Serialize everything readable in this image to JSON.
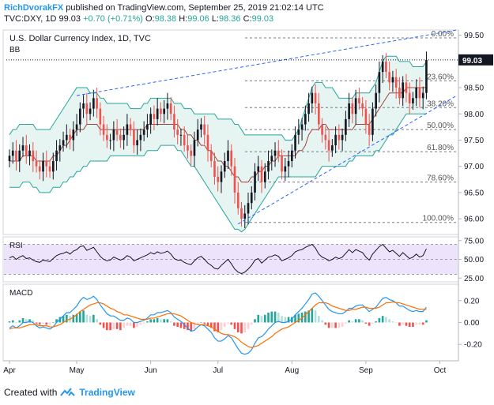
{
  "header": {
    "user": "RichDvorakFX",
    "published": "published on TradingView.com, September 25, 2019 21:02:14 UTC",
    "symbol": "TVC:DXY, 1D",
    "last": "99.03",
    "change": "+0.70 (+0.71%)",
    "ohlc": [
      {
        "label": "O:",
        "value": "98.38"
      },
      {
        "label": "H:",
        "value": "99.06"
      },
      {
        "label": "L:",
        "value": "98.36"
      },
      {
        "label": "C:",
        "value": "99.03"
      }
    ]
  },
  "footer": {
    "created": "Created with",
    "brand": "TradingView"
  },
  "colors": {
    "up": "#26a69a",
    "down": "#ef5350",
    "candle_up": "#131722",
    "bb": "#26a69a",
    "bb_fill": "#e6f4f2",
    "sma": "#a1453d",
    "trend": "#2962ff",
    "rsi": "#131722",
    "rsi_band": "#ede3fa",
    "macd": "#2196f3",
    "signal": "#ff6d00"
  },
  "chart_data": [
    {
      "type": "candlestick",
      "title": "U.S. Dollar Currency Index, 1D, TVC",
      "indicator_label": "BB",
      "price_label": "99.03",
      "ylim": [
        95.7,
        99.6
      ],
      "y_ticks": [
        "99.50",
        "99.00",
        "98.50",
        "98.00",
        "97.50",
        "97.00",
        "96.50",
        "96.00"
      ],
      "x_ticks": [
        "Apr",
        "May",
        "Jun",
        "Jul",
        "Aug",
        "Sep",
        "Oct"
      ],
      "fibonacci": [
        {
          "label": "0.00%",
          "value": 99.45
        },
        {
          "label": "23.60%",
          "value": 98.63
        },
        {
          "label": "38.20%",
          "value": 98.12
        },
        {
          "label": "50.00%",
          "value": 97.7
        },
        {
          "label": "61.80%",
          "value": 97.28
        },
        {
          "label": "78.60%",
          "value": 96.7
        },
        {
          "label": "100.00%",
          "value": 95.93
        }
      ],
      "close": [
        97.2,
        97.3,
        97.1,
        97.3,
        97.4,
        97.2,
        97.3,
        97.1,
        97.0,
        96.9,
        97.1,
        97.0,
        96.9,
        97.1,
        97.3,
        97.4,
        97.5,
        97.6,
        97.5,
        97.7,
        97.8,
        98.1,
        98.2,
        98.0,
        98.1,
        98.3,
        98.1,
        97.8,
        97.6,
        97.5,
        97.5,
        97.7,
        97.6,
        97.5,
        97.6,
        97.8,
        97.7,
        97.4,
        97.5,
        97.6,
        97.7,
        97.8,
        98.0,
        97.9,
        98.1,
        98.0,
        98.1,
        98.2,
        98.0,
        97.7,
        97.6,
        97.6,
        97.4,
        97.3,
        97.2,
        97.5,
        97.7,
        97.8,
        97.6,
        97.3,
        97.1,
        96.8,
        96.7,
        96.9,
        97.1,
        97.3,
        97.0,
        96.5,
        96.2,
        96.0,
        96.1,
        96.3,
        96.5,
        96.9,
        97.0,
        96.7,
        96.9,
        97.1,
        97.2,
        97.3,
        97.2,
        96.9,
        97.0,
        97.1,
        97.3,
        97.6,
        97.7,
        97.8,
        98.0,
        98.2,
        98.4,
        98.2,
        97.8,
        97.6,
        97.5,
        97.3,
        97.4,
        97.6,
        97.5,
        97.6,
        97.9,
        98.2,
        98.0,
        98.3,
        98.2,
        98.1,
        97.8,
        97.6,
        98.1,
        98.4,
        98.8,
        99.0,
        98.8,
        98.6,
        98.7,
        98.5,
        98.3,
        98.6,
        98.4,
        98.2,
        98.3,
        98.5,
        98.3,
        98.4,
        99.03
      ],
      "bb_upper": [
        97.6,
        97.7,
        97.7,
        97.8,
        97.8,
        97.8,
        97.8,
        97.8,
        97.7,
        97.7,
        97.7,
        97.7,
        97.7,
        97.8,
        97.9,
        98.0,
        98.1,
        98.2,
        98.3,
        98.4,
        98.5,
        98.5,
        98.5,
        98.5,
        98.4,
        98.4,
        98.4,
        98.3,
        98.3,
        98.2,
        98.2,
        98.2,
        98.2,
        98.2,
        98.2,
        98.2,
        98.1,
        98.1,
        98.1,
        98.1,
        98.2,
        98.2,
        98.3,
        98.3,
        98.3,
        98.3,
        98.3,
        98.3,
        98.3,
        98.2,
        98.2,
        98.2,
        98.1,
        98.1,
        98.1,
        98.0,
        98.0,
        98.0,
        98.0,
        98.0,
        98.0,
        98.0,
        97.9,
        97.9,
        97.9,
        97.9,
        97.9,
        97.8,
        97.8,
        97.7,
        97.6,
        97.6,
        97.6,
        97.6,
        97.6,
        97.6,
        97.6,
        97.6,
        97.6,
        97.6,
        97.6,
        97.6,
        97.5,
        97.5,
        97.5,
        97.6,
        97.7,
        97.9,
        98.1,
        98.3,
        98.5,
        98.6,
        98.6,
        98.6,
        98.5,
        98.5,
        98.5,
        98.4,
        98.3,
        98.3,
        98.3,
        98.3,
        98.3,
        98.4,
        98.4,
        98.4,
        98.4,
        98.4,
        98.5,
        98.6,
        98.8,
        99.0,
        99.1,
        99.1,
        99.1,
        99.1,
        99.0,
        99.0,
        99.0,
        99.0,
        98.9,
        98.9,
        98.9,
        98.9,
        99.0
      ],
      "bb_lower": [
        96.6,
        96.6,
        96.6,
        96.6,
        96.7,
        96.7,
        96.7,
        96.6,
        96.6,
        96.5,
        96.5,
        96.5,
        96.5,
        96.6,
        96.6,
        96.6,
        96.7,
        96.7,
        96.8,
        96.8,
        96.9,
        96.9,
        97.0,
        97.0,
        97.1,
        97.1,
        97.1,
        97.1,
        97.1,
        97.1,
        97.2,
        97.2,
        97.2,
        97.2,
        97.2,
        97.2,
        97.2,
        97.2,
        97.2,
        97.2,
        97.2,
        97.3,
        97.3,
        97.3,
        97.3,
        97.4,
        97.4,
        97.4,
        97.4,
        97.4,
        97.3,
        97.3,
        97.2,
        97.1,
        97.0,
        97.0,
        96.9,
        96.8,
        96.7,
        96.6,
        96.5,
        96.4,
        96.3,
        96.2,
        96.1,
        96.0,
        95.9,
        95.8,
        95.8,
        95.75,
        95.8,
        95.9,
        96.0,
        96.1,
        96.2,
        96.3,
        96.4,
        96.5,
        96.6,
        96.7,
        96.8,
        96.8,
        96.8,
        96.8,
        96.8,
        96.8,
        96.8,
        96.8,
        96.8,
        96.8,
        96.8,
        96.8,
        96.9,
        97.0,
        97.0,
        97.0,
        97.0,
        97.0,
        97.0,
        97.0,
        97.0,
        97.1,
        97.1,
        97.2,
        97.2,
        97.2,
        97.2,
        97.2,
        97.2,
        97.3,
        97.3,
        97.4,
        97.5,
        97.6,
        97.6,
        97.7,
        97.8,
        97.9,
        98.0,
        98.0,
        98.0,
        98.0,
        98.0,
        98.0,
        98.0
      ],
      "bb_mid": [
        97.1,
        97.1,
        97.1,
        97.1,
        97.2,
        97.2,
        97.2,
        97.2,
        97.1,
        97.1,
        97.1,
        97.1,
        97.1,
        97.2,
        97.2,
        97.3,
        97.4,
        97.4,
        97.5,
        97.6,
        97.7,
        97.7,
        97.7,
        97.8,
        97.8,
        97.8,
        97.8,
        97.7,
        97.7,
        97.7,
        97.7,
        97.7,
        97.7,
        97.7,
        97.7,
        97.7,
        97.7,
        97.7,
        97.7,
        97.7,
        97.7,
        97.8,
        97.8,
        97.8,
        97.8,
        97.8,
        97.8,
        97.8,
        97.8,
        97.8,
        97.8,
        97.7,
        97.7,
        97.6,
        97.6,
        97.5,
        97.5,
        97.4,
        97.4,
        97.3,
        97.3,
        97.2,
        97.1,
        97.1,
        97.0,
        97.0,
        96.9,
        96.8,
        96.8,
        96.7,
        96.7,
        96.7,
        96.8,
        96.8,
        96.9,
        96.9,
        97.0,
        97.0,
        97.1,
        97.1,
        97.2,
        97.2,
        97.2,
        97.2,
        97.2,
        97.2,
        97.3,
        97.3,
        97.4,
        97.6,
        97.7,
        97.7,
        97.7,
        97.8,
        97.8,
        97.7,
        97.7,
        97.7,
        97.7,
        97.7,
        97.7,
        97.7,
        97.7,
        97.8,
        97.8,
        97.8,
        97.8,
        97.8,
        97.9,
        98.0,
        98.1,
        98.2,
        98.3,
        98.4,
        98.4,
        98.4,
        98.4,
        98.4,
        98.5,
        98.5,
        98.5,
        98.5,
        98.5,
        98.5,
        98.5
      ]
    },
    {
      "type": "line",
      "title": "RSI",
      "ylim": [
        20,
        80
      ],
      "y_ticks": [
        "75.00",
        "50.00",
        "25.00"
      ],
      "band": [
        30,
        70
      ],
      "values": [
        52,
        54,
        50,
        53,
        55,
        51,
        52,
        49,
        47,
        46,
        49,
        48,
        47,
        51,
        55,
        57,
        58,
        60,
        57,
        61,
        63,
        67,
        68,
        62,
        64,
        66,
        60,
        54,
        50,
        48,
        49,
        53,
        51,
        49,
        51,
        55,
        53,
        48,
        50,
        52,
        54,
        56,
        59,
        57,
        60,
        58,
        59,
        61,
        57,
        51,
        49,
        49,
        46,
        44,
        43,
        48,
        52,
        54,
        50,
        45,
        42,
        38,
        37,
        42,
        46,
        50,
        44,
        37,
        33,
        31,
        33,
        37,
        42,
        49,
        51,
        45,
        49,
        53,
        54,
        56,
        54,
        48,
        50,
        52,
        55,
        60,
        62,
        63,
        66,
        68,
        70,
        65,
        57,
        53,
        51,
        48,
        50,
        53,
        51,
        53,
        58,
        63,
        59,
        63,
        61,
        59,
        53,
        49,
        57,
        62,
        67,
        70,
        65,
        60,
        62,
        58,
        54,
        59,
        55,
        51,
        53,
        57,
        53,
        55,
        64
      ]
    },
    {
      "type": "line+histogram",
      "title": "MACD",
      "ylim": [
        -0.35,
        0.35
      ],
      "y_ticks": [
        "0.20",
        "0.00",
        "-0.20"
      ],
      "macd": [
        -0.05,
        -0.03,
        -0.05,
        -0.03,
        0.0,
        0.0,
        0.01,
        0.0,
        -0.03,
        -0.05,
        -0.04,
        -0.05,
        -0.06,
        -0.04,
        0.0,
        0.03,
        0.06,
        0.09,
        0.09,
        0.12,
        0.15,
        0.2,
        0.23,
        0.21,
        0.22,
        0.24,
        0.21,
        0.16,
        0.12,
        0.08,
        0.06,
        0.06,
        0.04,
        0.02,
        0.02,
        0.04,
        0.03,
        0.0,
        0.0,
        0.01,
        0.02,
        0.04,
        0.07,
        0.07,
        0.09,
        0.09,
        0.1,
        0.11,
        0.09,
        0.05,
        0.03,
        0.01,
        -0.02,
        -0.05,
        -0.08,
        -0.07,
        -0.04,
        -0.02,
        -0.03,
        -0.06,
        -0.09,
        -0.14,
        -0.17,
        -0.17,
        -0.15,
        -0.12,
        -0.14,
        -0.19,
        -0.24,
        -0.28,
        -0.29,
        -0.28,
        -0.25,
        -0.19,
        -0.14,
        -0.13,
        -0.1,
        -0.06,
        -0.03,
        0.0,
        0.01,
        0.0,
        0.0,
        0.01,
        0.03,
        0.07,
        0.1,
        0.13,
        0.17,
        0.21,
        0.26,
        0.27,
        0.24,
        0.2,
        0.16,
        0.12,
        0.1,
        0.09,
        0.08,
        0.08,
        0.1,
        0.13,
        0.13,
        0.15,
        0.16,
        0.16,
        0.13,
        0.1,
        0.12,
        0.14,
        0.18,
        0.22,
        0.23,
        0.21,
        0.2,
        0.18,
        0.15,
        0.15,
        0.13,
        0.11,
        0.1,
        0.11,
        0.1,
        0.1,
        0.14
      ],
      "signal": [
        -0.06,
        -0.05,
        -0.05,
        -0.05,
        -0.04,
        -0.03,
        -0.02,
        -0.02,
        -0.02,
        -0.03,
        -0.03,
        -0.03,
        -0.04,
        -0.04,
        -0.03,
        -0.02,
        0.0,
        0.02,
        0.03,
        0.05,
        0.07,
        0.1,
        0.12,
        0.14,
        0.16,
        0.17,
        0.18,
        0.18,
        0.17,
        0.15,
        0.13,
        0.12,
        0.1,
        0.09,
        0.07,
        0.07,
        0.06,
        0.05,
        0.04,
        0.03,
        0.03,
        0.03,
        0.04,
        0.04,
        0.05,
        0.06,
        0.07,
        0.08,
        0.08,
        0.08,
        0.07,
        0.06,
        0.04,
        0.02,
        0.0,
        -0.01,
        -0.02,
        -0.02,
        -0.02,
        -0.03,
        -0.04,
        -0.06,
        -0.08,
        -0.1,
        -0.11,
        -0.11,
        -0.12,
        -0.13,
        -0.15,
        -0.18,
        -0.2,
        -0.22,
        -0.23,
        -0.22,
        -0.21,
        -0.19,
        -0.17,
        -0.15,
        -0.13,
        -0.1,
        -0.08,
        -0.06,
        -0.05,
        -0.04,
        -0.02,
        0.0,
        0.02,
        0.04,
        0.07,
        0.1,
        0.13,
        0.16,
        0.18,
        0.18,
        0.18,
        0.17,
        0.15,
        0.14,
        0.13,
        0.12,
        0.11,
        0.11,
        0.12,
        0.12,
        0.13,
        0.14,
        0.14,
        0.13,
        0.13,
        0.13,
        0.14,
        0.16,
        0.18,
        0.18,
        0.19,
        0.18,
        0.18,
        0.17,
        0.16,
        0.15,
        0.14,
        0.13,
        0.12,
        0.12,
        0.12
      ]
    }
  ]
}
